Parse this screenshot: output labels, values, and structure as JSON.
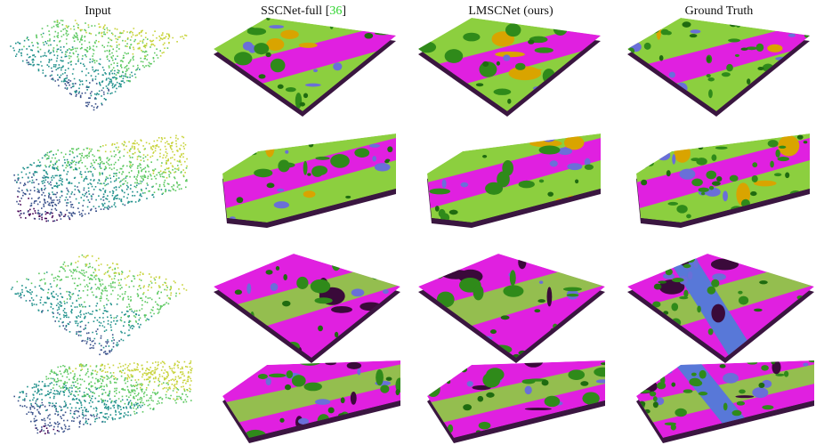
{
  "headers": [
    {
      "text": "Input"
    },
    {
      "text": "SSCNet-full [",
      "citation": "36",
      "close": "]"
    },
    {
      "text": "LMSCNet (ours)"
    },
    {
      "text": "Ground Truth"
    }
  ]
}
